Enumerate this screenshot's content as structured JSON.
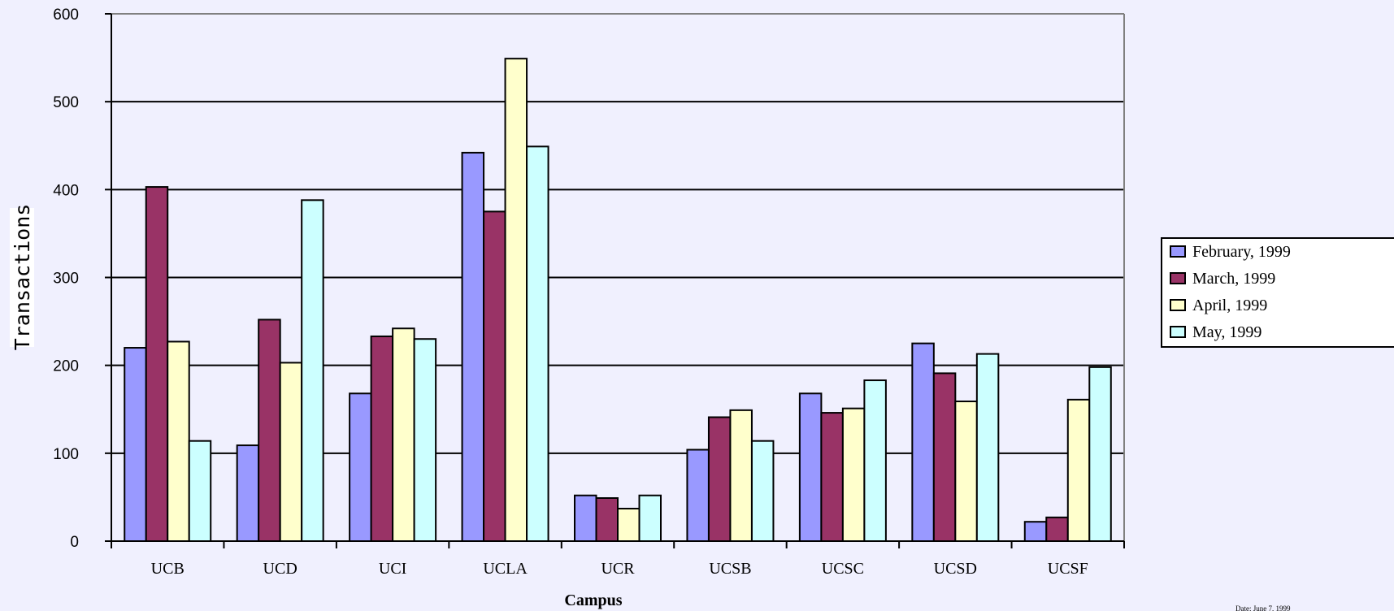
{
  "chart_data": {
    "type": "bar",
    "title": "",
    "xlabel": "Campus",
    "ylabel": "Transactions",
    "ylim": [
      0,
      600
    ],
    "yticks": [
      0,
      100,
      200,
      300,
      400,
      500,
      600
    ],
    "grid": true,
    "legend_position": "right",
    "categories": [
      "UCB",
      "UCD",
      "UCI",
      "UCLA",
      "UCR",
      "UCSB",
      "UCSC",
      "UCSD",
      "UCSF"
    ],
    "series": [
      {
        "name": "February, 1999",
        "color": "#9999ff",
        "values": [
          220,
          109,
          168,
          442,
          52,
          104,
          168,
          225,
          22
        ]
      },
      {
        "name": "March, 1999",
        "color": "#993366",
        "values": [
          403,
          252,
          233,
          375,
          49,
          141,
          146,
          191,
          27
        ]
      },
      {
        "name": "April, 1999",
        "color": "#ffffcc",
        "values": [
          227,
          203,
          242,
          549,
          37,
          149,
          151,
          159,
          161
        ]
      },
      {
        "name": "May, 1999",
        "color": "#ccffff",
        "values": [
          114,
          388,
          230,
          449,
          52,
          114,
          183,
          213,
          198
        ]
      }
    ],
    "footnote": "Date:  June 7, 1999"
  }
}
